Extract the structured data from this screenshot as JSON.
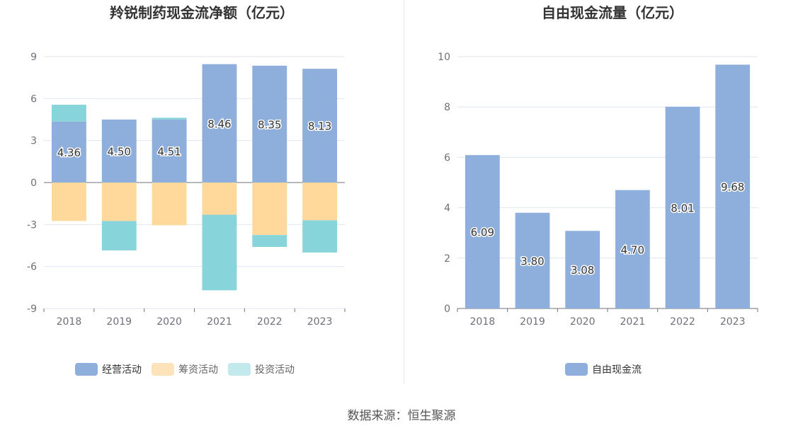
{
  "chart_data": [
    {
      "type": "bar",
      "stacked": true,
      "title": "羚锐制药现金流净额（亿元）",
      "categories": [
        "2018",
        "2019",
        "2020",
        "2021",
        "2022",
        "2023"
      ],
      "ylim": [
        -9,
        9
      ],
      "yticks": [
        "9",
        "6",
        "3",
        "0",
        "-3",
        "-6",
        "-9"
      ],
      "series": [
        {
          "name": "经营活动",
          "color": "#8eaedc",
          "values": [
            4.36,
            4.5,
            4.51,
            8.46,
            8.35,
            8.13
          ],
          "labels": [
            "4.36",
            "4.50",
            "4.51",
            "8.46",
            "8.35",
            "8.13"
          ]
        },
        {
          "name": "筹资活动",
          "color": "#fed99b",
          "values": [
            -2.75,
            -2.75,
            -3.05,
            -2.3,
            -3.75,
            -2.7
          ]
        },
        {
          "name": "投资活动",
          "color": "#87d5da",
          "values": [
            1.2,
            -2.1,
            0.12,
            -5.4,
            -0.85,
            -2.3
          ]
        }
      ],
      "grid": true,
      "legend": "bottom"
    },
    {
      "type": "bar",
      "title": "自由现金流量（亿元）",
      "categories": [
        "2018",
        "2019",
        "2020",
        "2021",
        "2022",
        "2023"
      ],
      "ylim": [
        0,
        10
      ],
      "yticks": [
        "10",
        "8",
        "6",
        "4",
        "2",
        "0"
      ],
      "series": [
        {
          "name": "自由现金流",
          "color": "#8eaedc",
          "values": [
            6.09,
            3.8,
            3.08,
            4.7,
            8.01,
            9.68
          ],
          "labels": [
            "6.09",
            "3.80",
            "3.08",
            "4.70",
            "8.01",
            "9.68"
          ]
        }
      ],
      "grid": true,
      "legend": "bottom"
    }
  ],
  "legend_left": [
    {
      "name": "经营活动",
      "color": "#8eaedc"
    },
    {
      "name": "筹资活动",
      "color": "#fde3ba"
    },
    {
      "name": "投资活动",
      "color": "#c2e9ec"
    }
  ],
  "legend_right": [
    {
      "name": "自由现金流",
      "color": "#8eaedc"
    }
  ],
  "source": "数据来源：恒生聚源"
}
